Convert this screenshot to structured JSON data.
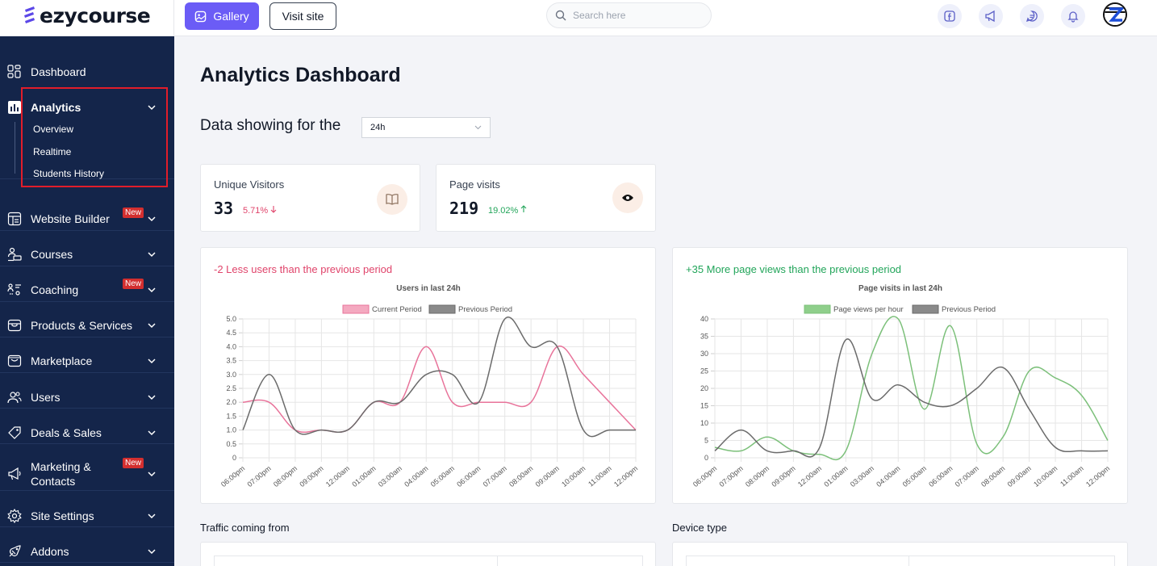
{
  "brand": {
    "name": "ezycourse"
  },
  "topbar": {
    "gallery_label": "Gallery",
    "visit_label": "Visit site",
    "search_placeholder": "Search here",
    "icons": [
      "facebook-icon",
      "megaphone-icon",
      "chat-icon",
      "bell-icon"
    ]
  },
  "sidebar": {
    "items": [
      {
        "label": "Dashboard",
        "icon": "dashboard-icon",
        "chevron": false,
        "badge": ""
      },
      {
        "label": "Analytics",
        "icon": "analytics-icon",
        "chevron": true,
        "badge": ""
      },
      {
        "label": "Website Builder",
        "icon": "website-builder-icon",
        "chevron": true,
        "badge": "New"
      },
      {
        "label": "Courses",
        "icon": "courses-icon",
        "chevron": true,
        "badge": ""
      },
      {
        "label": "Coaching",
        "icon": "coaching-icon",
        "chevron": true,
        "badge": "New"
      },
      {
        "label": "Products & Services",
        "icon": "products-icon",
        "chevron": true,
        "badge": ""
      },
      {
        "label": "Marketplace",
        "icon": "marketplace-icon",
        "chevron": true,
        "badge": ""
      },
      {
        "label": "Users",
        "icon": "users-icon",
        "chevron": true,
        "badge": ""
      },
      {
        "label": "Deals & Sales",
        "icon": "deals-icon",
        "chevron": true,
        "badge": ""
      },
      {
        "label": "Marketing & Contacts",
        "icon": "marketing-icon",
        "chevron": true,
        "badge": "New"
      },
      {
        "label": "Site Settings",
        "icon": "settings-icon",
        "chevron": true,
        "badge": ""
      },
      {
        "label": "Addons",
        "icon": "addons-icon",
        "chevron": true,
        "badge": ""
      }
    ],
    "analytics_sub": [
      "Overview",
      "Realtime",
      "Students History"
    ]
  },
  "main": {
    "title": "Analytics Dashboard",
    "filter_label": "Data showing for the",
    "filter_value": "24h",
    "stats": [
      {
        "title": "Unique Visitors",
        "value": "33",
        "change": "5.71%",
        "direction": "down",
        "color": "#e0446b",
        "icon": "book-icon"
      },
      {
        "title": "Page visits",
        "value": "219",
        "change": "19.02%",
        "direction": "up",
        "color": "#22a55a",
        "icon": "eye-icon"
      }
    ],
    "traffic_label": "Traffic coming from",
    "device_label": "Device type"
  },
  "colors": {
    "sidebar_bg": "#14254a",
    "accent": "#6b5cf6",
    "negative": "#e0446b",
    "positive": "#22a55a",
    "highlight": "#e11d2a"
  },
  "chart_data": [
    {
      "type": "line",
      "headline": "-2 Less users than the previous period",
      "headline_color": "#e0446b",
      "title": "Users in last 24h",
      "categories": [
        "06:00pm",
        "07:00pm",
        "08:00pm",
        "09:00pm",
        "12:00am",
        "01:00am",
        "03:00am",
        "04:00am",
        "05:00am",
        "06:00am",
        "07:00am",
        "08:00am",
        "09:00am",
        "10:00am",
        "11:00am",
        "12:00pm"
      ],
      "series": [
        {
          "name": "Current Period",
          "color": "#e8739a",
          "fill": "#f4a9c0",
          "values": [
            2,
            2,
            1,
            1,
            1,
            2,
            2,
            4,
            2,
            2,
            2,
            2,
            4,
            3,
            2,
            1
          ]
        },
        {
          "name": "Previous Period",
          "color": "#6b6b6b",
          "fill": "#8a8a8a",
          "values": [
            1,
            3,
            1,
            1,
            1,
            2,
            2,
            3,
            3,
            2,
            5,
            4,
            4,
            1,
            1,
            1
          ]
        }
      ],
      "ylim": [
        0,
        5
      ],
      "yticks": [
        "0",
        "0.5",
        "1.0",
        "1.5",
        "2.0",
        "2.5",
        "3.0",
        "3.5",
        "4.0",
        "4.5",
        "5.0"
      ],
      "legend": "top",
      "grid": true
    },
    {
      "type": "line",
      "headline": "+35 More page views than the previous period",
      "headline_color": "#22a55a",
      "title": "Page visits in last 24h",
      "categories": [
        "06:00pm",
        "07:00pm",
        "08:00pm",
        "09:00pm",
        "12:00am",
        "01:00am",
        "03:00am",
        "04:00am",
        "05:00am",
        "06:00am",
        "07:00am",
        "08:00am",
        "09:00am",
        "10:00am",
        "11:00am",
        "12:00pm"
      ],
      "series": [
        {
          "name": "Page views per hour",
          "color": "#7cc07a",
          "fill": "#8fcf8b",
          "values": [
            3,
            2,
            6,
            2,
            1,
            2,
            30,
            40,
            14,
            38,
            4,
            6,
            25,
            23,
            18,
            5
          ]
        },
        {
          "name": "Previous Period",
          "color": "#6b6b6b",
          "fill": "#8a8a8a",
          "values": [
            2,
            8,
            2,
            2,
            3,
            34,
            17,
            21,
            16,
            15,
            20,
            26,
            14,
            3,
            2,
            2
          ]
        }
      ],
      "ylim": [
        0,
        40
      ],
      "yticks": [
        "0",
        "5",
        "10",
        "15",
        "20",
        "25",
        "30",
        "35",
        "40"
      ],
      "legend": "top",
      "grid": true
    }
  ]
}
